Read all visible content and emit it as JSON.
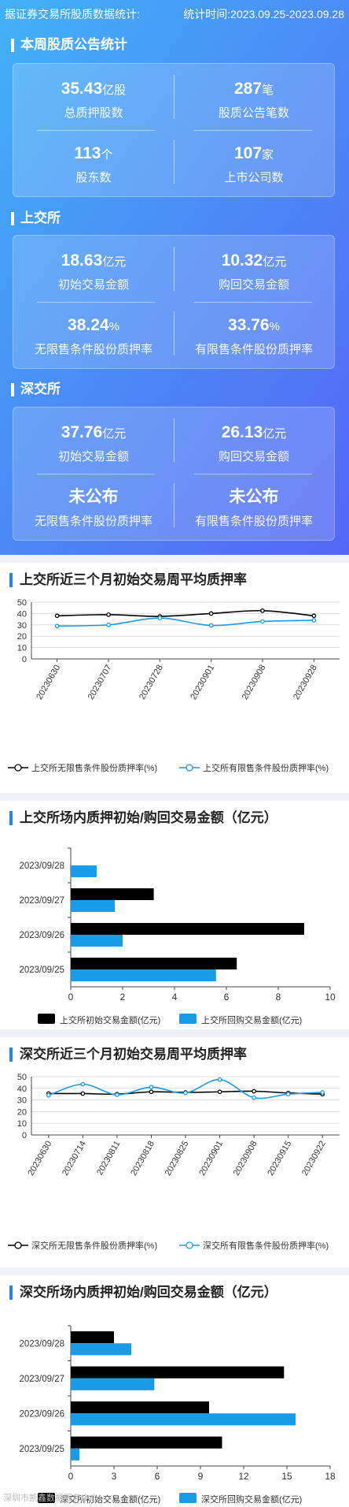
{
  "header": {
    "left": "据证券交易所股质数据统计:",
    "right": "统计时间:2023.09.25-2023.09.28"
  },
  "weekly": {
    "title": "本周股质公告统计",
    "stats": [
      {
        "value": "35.43",
        "unit": "亿股",
        "label": "总质押股数"
      },
      {
        "value": "287",
        "unit": "笔",
        "label": "股质公告笔数"
      },
      {
        "value": "113",
        "unit": "个",
        "label": "股东数"
      },
      {
        "value": "107",
        "unit": "家",
        "label": "上市公司数"
      }
    ]
  },
  "sse": {
    "title": "上交所",
    "stats": [
      {
        "value": "18.63",
        "unit": "亿元",
        "label": "初始交易金额"
      },
      {
        "value": "10.32",
        "unit": "亿元",
        "label": "购回交易金额"
      },
      {
        "value": "38.24",
        "unit": "%",
        "label": "无限售条件股份质押率"
      },
      {
        "value": "33.76",
        "unit": "%",
        "label": "有限售条件股份质押率"
      }
    ]
  },
  "szse": {
    "title": "深交所",
    "stats": [
      {
        "value": "37.76",
        "unit": "亿元",
        "label": "初始交易金额"
      },
      {
        "value": "26.13",
        "unit": "亿元",
        "label": "购回交易金额"
      },
      {
        "value": "未公布",
        "unit": "",
        "label": "无限售条件股份质押率"
      },
      {
        "value": "未公布",
        "unit": "",
        "label": "有限售条件股份质押率"
      }
    ]
  },
  "colors": {
    "accent": "#2a84e8",
    "black_series": "#000000",
    "blue_series": "#1a9be8"
  },
  "chart_data": [
    {
      "type": "line",
      "title": "上交所近三个月初始交易周平均质押率",
      "x": [
        "20230630",
        "20230707",
        "20230728",
        "20230901",
        "20230908",
        "20230928"
      ],
      "ylim": [
        0,
        50
      ],
      "yticks": [
        0,
        10,
        20,
        30,
        40,
        50
      ],
      "grid": true,
      "legend": "bottom",
      "series": [
        {
          "name": "上交所无限售条件股份质押率(%)",
          "values": [
            38,
            39,
            37.5,
            40,
            42.5,
            38
          ],
          "color": "#000000"
        },
        {
          "name": "上交所有限售条件股份质押率(%)",
          "values": [
            29,
            30,
            36,
            29.5,
            33,
            34
          ],
          "color": "#1a9be8"
        }
      ]
    },
    {
      "type": "bar",
      "orientation": "horizontal",
      "title": "上交所场内质押初始/购回交易金额（亿元）",
      "categories": [
        "2023/09/28",
        "2023/09/27",
        "2023/09/26",
        "2023/09/25"
      ],
      "xlim": [
        0,
        10
      ],
      "xticks": [
        0,
        2,
        4,
        6,
        8,
        10
      ],
      "legend": "bottom",
      "series": [
        {
          "name": "上交所初始交易金额(亿元)",
          "values": [
            0,
            3.2,
            9.0,
            6.4
          ],
          "color": "#000000"
        },
        {
          "name": "上交所回购交易金额(亿元)",
          "values": [
            1.0,
            1.7,
            2.0,
            5.6
          ],
          "color": "#1a9be8"
        }
      ]
    },
    {
      "type": "line",
      "title": "深交所近三个月初始交易周平均质押率",
      "x": [
        "20230630",
        "20230714",
        "20230811",
        "20230818",
        "20230825",
        "20230901",
        "20230908",
        "20230915",
        "20230922"
      ],
      "ylim": [
        0,
        50
      ],
      "yticks": [
        0,
        10,
        20,
        30,
        40,
        50
      ],
      "grid": true,
      "legend": "bottom",
      "series": [
        {
          "name": "深交所无限售条件股份质押率(%)",
          "values": [
            35.5,
            35.5,
            35,
            37,
            36.5,
            37,
            37.5,
            36,
            35
          ],
          "color": "#000000"
        },
        {
          "name": "深交所有限售条件股份质押率(%)",
          "values": [
            34,
            43.5,
            34.5,
            41,
            36,
            47.5,
            32,
            35,
            36.5
          ],
          "color": "#1a9be8"
        }
      ]
    },
    {
      "type": "bar",
      "orientation": "horizontal",
      "title": "深交所场内质押初始/购回交易金额（亿元）",
      "categories": [
        "2023/09/28",
        "2023/09/27",
        "2023/09/26",
        "2023/09/25"
      ],
      "xlim": [
        0,
        18
      ],
      "xticks": [
        0,
        3,
        6,
        9,
        12,
        15,
        18
      ],
      "legend": "bottom",
      "series": [
        {
          "name": "深交所初始交易金额(亿元)",
          "values": [
            3.0,
            14.8,
            9.6,
            10.5
          ],
          "color": "#000000"
        },
        {
          "name": "深交所回购交易金额(亿元)",
          "values": [
            4.2,
            5.8,
            15.6,
            0.6
          ],
          "color": "#1a9be8"
        }
      ]
    }
  ],
  "footer": {
    "source": "深圳市凯鑫数据服务中心"
  }
}
